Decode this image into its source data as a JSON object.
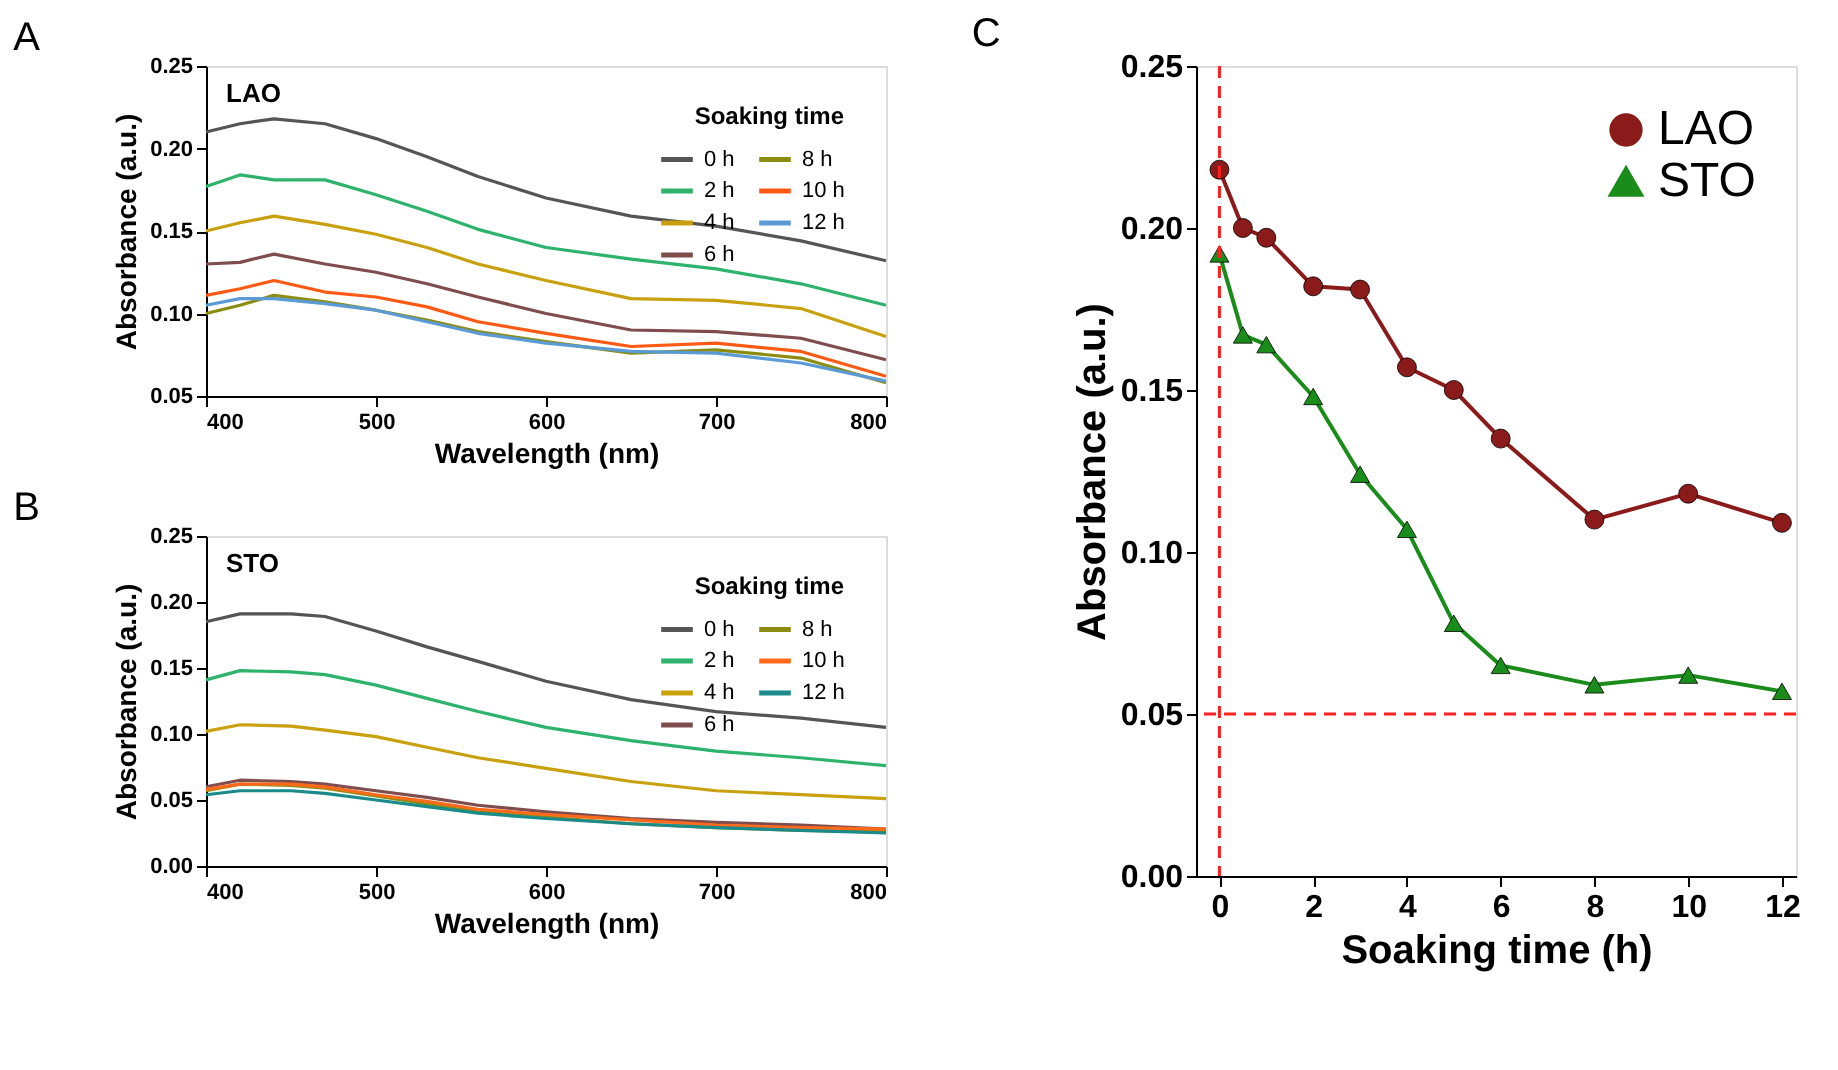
{
  "chart_data": [
    {
      "type": "line",
      "title": "A",
      "annotations": [
        "LAO"
      ],
      "xlabel": "Wavelength (nm)",
      "ylabel": "Absorbance (a.u.)",
      "legend_title": "Soaking time",
      "legend": "top right",
      "grid": false,
      "marker": "none",
      "line_style": "solid",
      "x": [
        400,
        420,
        440,
        470,
        500,
        530,
        560,
        600,
        650,
        700,
        750,
        800
      ],
      "xlim": [
        400,
        800
      ],
      "xticks": [
        400,
        500,
        600,
        700,
        800
      ],
      "ylim": [
        0.05,
        0.25
      ],
      "yticks": [
        0.05,
        {
          "value": 0.1,
          "label": "0.10"
        },
        0.15,
        {
          "value": 0.2,
          "label": "0.20"
        },
        0.25
      ],
      "series": [
        {
          "name": "0 h",
          "color": "#555555",
          "values": [
            0.21,
            0.215,
            0.218,
            0.215,
            0.206,
            0.195,
            0.183,
            0.17,
            0.159,
            0.153,
            0.144,
            0.132
          ]
        },
        {
          "name": "2 h",
          "color": "#2db36b",
          "values": [
            0.177,
            0.184,
            0.181,
            0.181,
            0.172,
            0.162,
            0.151,
            0.14,
            0.133,
            0.127,
            0.118,
            0.105
          ]
        },
        {
          "name": "4 h",
          "color": "#c9a00e",
          "values": [
            0.15,
            0.155,
            0.159,
            0.154,
            0.148,
            0.14,
            0.13,
            0.12,
            0.109,
            0.108,
            0.103,
            0.086
          ]
        },
        {
          "name": "6 h",
          "color": "#7f4d4d",
          "values": [
            0.13,
            0.131,
            0.136,
            0.13,
            0.125,
            0.118,
            0.11,
            0.1,
            0.09,
            0.089,
            0.085,
            0.072
          ]
        },
        {
          "name": "8 h",
          "color": "#8c8c10",
          "values": [
            0.1,
            0.105,
            0.111,
            0.107,
            0.102,
            0.096,
            0.089,
            0.083,
            0.076,
            0.078,
            0.073,
            0.058
          ]
        },
        {
          "name": "10 h",
          "color": "#ff5a14",
          "values": [
            0.111,
            0.115,
            0.12,
            0.113,
            0.11,
            0.104,
            0.095,
            0.088,
            0.08,
            0.082,
            0.077,
            0.062
          ]
        },
        {
          "name": "12 h",
          "color": "#5b9bd5",
          "values": [
            0.105,
            0.109,
            0.109,
            0.106,
            0.102,
            0.095,
            0.088,
            0.082,
            0.077,
            0.076,
            0.07,
            0.059
          ]
        }
      ]
    },
    {
      "type": "line",
      "title": "B",
      "annotations": [
        "STO"
      ],
      "xlabel": "Wavelength (nm)",
      "ylabel": "Absorbance (a.u.)",
      "legend_title": "Soaking time",
      "legend": "top right",
      "grid": false,
      "marker": "none",
      "line_style": "solid",
      "x": [
        400,
        420,
        450,
        470,
        500,
        530,
        560,
        600,
        650,
        700,
        750,
        800
      ],
      "xlim": [
        400,
        800
      ],
      "xticks": [
        400,
        500,
        600,
        700,
        800
      ],
      "ylim": [
        0,
        0.25
      ],
      "yticks": [
        {
          "value": 0,
          "label": "0.00"
        },
        0.05,
        {
          "value": 0.1,
          "label": "0.10"
        },
        0.15,
        {
          "value": 0.2,
          "label": "0.20"
        },
        0.25
      ],
      "series": [
        {
          "name": "0 h",
          "color": "#555555",
          "values": [
            0.185,
            0.191,
            0.191,
            0.189,
            0.178,
            0.166,
            0.155,
            0.14,
            0.126,
            0.117,
            0.112,
            0.105
          ]
        },
        {
          "name": "2 h",
          "color": "#2db36b",
          "values": [
            0.141,
            0.148,
            0.147,
            0.145,
            0.137,
            0.127,
            0.117,
            0.105,
            0.095,
            0.087,
            0.082,
            0.076
          ]
        },
        {
          "name": "4 h",
          "color": "#c9a00e",
          "values": [
            0.102,
            0.107,
            0.106,
            0.103,
            0.098,
            0.09,
            0.082,
            0.074,
            0.064,
            0.057,
            0.054,
            0.051
          ]
        },
        {
          "name": "6 h",
          "color": "#7f4d4d",
          "values": [
            0.06,
            0.065,
            0.064,
            0.062,
            0.057,
            0.052,
            0.046,
            0.041,
            0.036,
            0.033,
            0.031,
            0.028
          ]
        },
        {
          "name": "8 h",
          "color": "#8c8c10",
          "values": [
            0.057,
            0.062,
            0.061,
            0.059,
            0.053,
            0.047,
            0.041,
            0.037,
            0.032,
            0.029,
            0.027,
            0.026
          ]
        },
        {
          "name": "10 h",
          "color": "#ff6a1a",
          "values": [
            0.058,
            0.062,
            0.062,
            0.06,
            0.054,
            0.049,
            0.043,
            0.039,
            0.035,
            0.031,
            0.029,
            0.028
          ]
        },
        {
          "name": "12 h",
          "color": "#1a8a8a",
          "values": [
            0.054,
            0.057,
            0.057,
            0.055,
            0.05,
            0.045,
            0.04,
            0.036,
            0.032,
            0.029,
            0.027,
            0.025
          ]
        }
      ]
    },
    {
      "type": "line",
      "title": "C",
      "xlabel": "Soaking time (h)",
      "ylabel": "Absorbance (a.u.)",
      "legend": "top right",
      "grid": false,
      "line_style": "solid",
      "x": [
        0,
        0.5,
        1,
        2,
        3,
        4,
        5,
        6,
        8,
        10,
        12
      ],
      "xlim": [
        -0.5,
        12.3
      ],
      "xticks": [
        0,
        2,
        4,
        6,
        8,
        10,
        12
      ],
      "ylim": [
        0,
        0.25
      ],
      "yticks": [
        {
          "value": 0,
          "label": "0.00"
        },
        0.05,
        {
          "value": 0.1,
          "label": "0.10"
        },
        0.15,
        {
          "value": 0.2,
          "label": "0.20"
        },
        0.25
      ],
      "series": [
        {
          "name": "LAO",
          "color": "#8b1a1a",
          "marker": "circle",
          "values": [
            0.218,
            0.2,
            0.197,
            0.182,
            0.181,
            0.157,
            0.15,
            0.135,
            0.11,
            0.118,
            0.109
          ]
        },
        {
          "name": "STO",
          "color": "#1a8c1a",
          "marker": "triangle",
          "values": [
            0.192,
            0.167,
            0.164,
            0.148,
            0.124,
            0.107,
            0.078,
            0.065,
            0.059,
            0.062,
            0.057
          ]
        }
      ],
      "ref_lines": [
        {
          "axis": "x",
          "value": 0,
          "color": "#ff2020",
          "line_style": "dashed"
        },
        {
          "axis": "y",
          "value": 0.05,
          "color": "#ff2020",
          "line_style": "dashed"
        }
      ]
    }
  ]
}
